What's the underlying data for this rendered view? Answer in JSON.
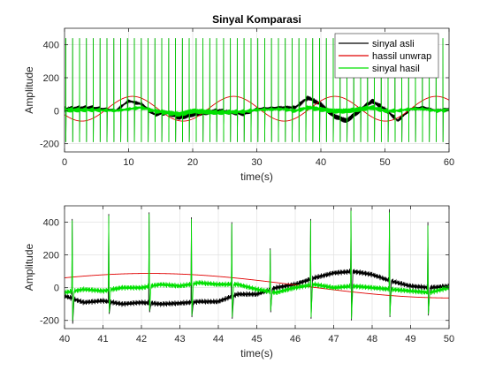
{
  "figure": {
    "background": "#ffffff"
  },
  "chart_data": [
    {
      "type": "line",
      "title": "Sinyal Komparasi",
      "xlabel": "time(s)",
      "ylabel": "Amplitude",
      "xlim": [
        0,
        60
      ],
      "ylim": [
        -250,
        500
      ],
      "xticks": [
        0,
        10,
        20,
        30,
        40,
        50,
        60
      ],
      "xtick_labels": [
        "0",
        "10",
        "20",
        "30",
        "40",
        "50",
        "60"
      ],
      "yticks": [
        -200,
        0,
        200,
        400
      ],
      "ytick_labels": [
        "-200",
        "0",
        "200",
        "400"
      ],
      "grid": true,
      "legend": {
        "placement": "top-right"
      },
      "series": [
        {
          "name": "sinyal asli",
          "color": "#000000",
          "beat_spikes": {
            "period_s": 1.07,
            "first_s": 0.2,
            "peak": 440,
            "trough": -190
          },
          "baseline": {
            "x": [
              0,
              4,
              8,
              10,
              12,
              14,
              16,
              18,
              20,
              24,
              28,
              30,
              34,
              36,
              38,
              40,
              42,
              44,
              46,
              48,
              50,
              52,
              54,
              56,
              58,
              60
            ],
            "y": [
              10,
              20,
              0,
              60,
              40,
              -20,
              -10,
              -40,
              -20,
              0,
              -20,
              10,
              20,
              20,
              80,
              40,
              -30,
              -60,
              0,
              60,
              10,
              -60,
              10,
              20,
              0,
              10
            ]
          }
        },
        {
          "name": "hassil unwrap",
          "color": "#e00000",
          "sinusoid": {
            "amplitude": 75,
            "period_s": 15.8,
            "phase_peak_s": 42.2,
            "offset": 12
          }
        },
        {
          "name": "sinyal hasil",
          "color": "#00e000",
          "beat_spikes": {
            "period_s": 1.07,
            "first_s": 0.2,
            "peak": 440,
            "trough": -190
          },
          "baseline": {
            "x": [
              0,
              4,
              8,
              10,
              12,
              14,
              16,
              18,
              20,
              24,
              28,
              30,
              34,
              36,
              38,
              40,
              42,
              44,
              46,
              48,
              50,
              52,
              54,
              56,
              58,
              60
            ],
            "y": [
              5,
              5,
              0,
              10,
              20,
              0,
              -10,
              -20,
              0,
              -10,
              -5,
              5,
              10,
              0,
              20,
              10,
              0,
              0,
              10,
              20,
              0,
              0,
              10,
              10,
              0,
              5
            ]
          }
        }
      ]
    },
    {
      "type": "line",
      "title": "",
      "xlabel": "time(s)",
      "ylabel": "Amplitude",
      "xlim": [
        40,
        50
      ],
      "ylim": [
        -250,
        500
      ],
      "xticks": [
        40,
        41,
        42,
        43,
        44,
        45,
        46,
        47,
        48,
        49,
        50
      ],
      "xtick_labels": [
        "40",
        "41",
        "42",
        "43",
        "44",
        "45",
        "46",
        "47",
        "48",
        "49",
        "50"
      ],
      "yticks": [
        -200,
        0,
        200,
        400
      ],
      "ytick_labels": [
        "-200",
        "0",
        "200",
        "400"
      ],
      "grid": true,
      "series": [
        {
          "color": "#000000",
          "beat_times": [
            40.2,
            41.15,
            42.2,
            43.3,
            44.35,
            45.35,
            46.4,
            47.45,
            48.45,
            49.45
          ],
          "spike_peaks": [
            420,
            450,
            460,
            430,
            400,
            240,
            420,
            490,
            480,
            400
          ],
          "spike_troughs": [
            -220,
            -160,
            -150,
            -180,
            -190,
            -150,
            -190,
            -200,
            -180,
            -170
          ],
          "baseline": {
            "x": [
              40,
              40.5,
              41,
              41.5,
              42,
              42.5,
              43,
              43.5,
              44,
              44.5,
              45,
              45.5,
              46,
              46.5,
              47,
              47.5,
              48,
              48.5,
              49,
              49.5,
              50
            ],
            "y": [
              -50,
              -90,
              -80,
              -100,
              -90,
              -100,
              -95,
              -85,
              -85,
              -40,
              -40,
              0,
              20,
              60,
              90,
              100,
              80,
              40,
              10,
              0,
              10
            ]
          }
        },
        {
          "color": "#e00000",
          "sinusoid": {
            "amplitude": 75,
            "period_s": 15.8,
            "phase_peak_s": 42.2,
            "offset": 12
          }
        },
        {
          "color": "#00e000",
          "beat_times": [
            40.2,
            41.15,
            42.2,
            43.3,
            44.35,
            45.35,
            46.4,
            47.45,
            48.45,
            49.45
          ],
          "spike_peaks": [
            410,
            440,
            450,
            420,
            390,
            230,
            410,
            470,
            460,
            380
          ],
          "spike_troughs": [
            -200,
            -150,
            -140,
            -170,
            -180,
            -140,
            -180,
            -190,
            -170,
            -160
          ],
          "baseline": {
            "x": [
              40,
              40.5,
              41,
              41.5,
              42,
              42.5,
              43,
              43.5,
              44,
              44.5,
              45,
              45.5,
              46,
              46.5,
              47,
              47.5,
              48,
              48.5,
              49,
              49.5,
              50
            ],
            "y": [
              -30,
              -10,
              -20,
              0,
              0,
              20,
              10,
              30,
              20,
              20,
              -10,
              -30,
              0,
              20,
              0,
              10,
              0,
              -10,
              -20,
              -30,
              0
            ]
          }
        }
      ]
    }
  ]
}
